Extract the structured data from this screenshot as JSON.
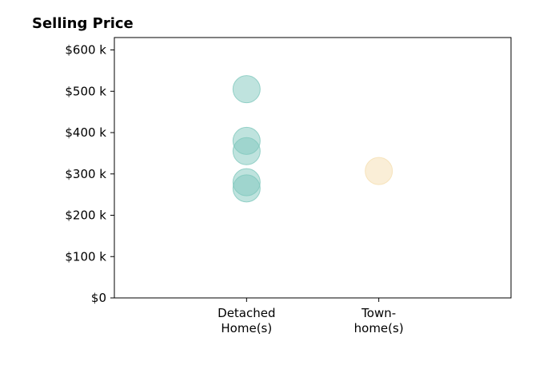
{
  "chart_data": {
    "type": "scatter",
    "title": "Selling Price",
    "xlabel": "",
    "ylabel": "",
    "categories": [
      [
        "Detached",
        "Home(s)"
      ],
      [
        "Town-",
        "home(s)"
      ]
    ],
    "y_ticks": [
      0,
      100,
      200,
      300,
      400,
      500,
      600
    ],
    "y_tick_labels": [
      "$0",
      "$100 k",
      "$200 k",
      "$300 k",
      "$400 k",
      "$500 k",
      "$600 k"
    ],
    "ylim": [
      0,
      630
    ],
    "xlim": [
      -1,
      2
    ],
    "grid": false,
    "legend": "none",
    "series": [
      {
        "category_index": 0,
        "color": "#7fc8bd",
        "values": [
          505,
          380,
          355,
          280,
          265
        ]
      },
      {
        "category_index": 1,
        "color": "#f5deb0",
        "values": [
          307
        ]
      }
    ],
    "point_opacity": 0.5
  }
}
